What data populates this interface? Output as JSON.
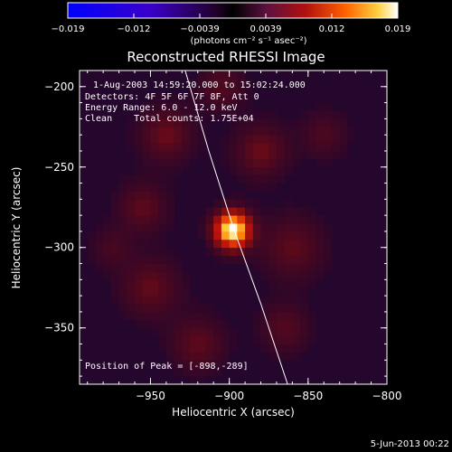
{
  "chart_data": {
    "type": "heatmap",
    "title": "Reconstructed RHESSI Image",
    "colorbar": {
      "ticks": [
        "-0.019",
        "-0.012",
        "-0.0039",
        "0.0039",
        "0.012",
        "0.019"
      ],
      "unit_label": "(photons cm⁻² s⁻¹ asec⁻²)",
      "range": [
        -0.019,
        0.019
      ]
    },
    "xlabel": "Heliocentric X (arcsec)",
    "ylabel": "Heliocentric Y (arcsec)",
    "xlim": [
      -995,
      -800
    ],
    "ylim": [
      -385,
      -190
    ],
    "x_ticks": [
      {
        "v": -950,
        "label": "−950"
      },
      {
        "v": -900,
        "label": "−900"
      },
      {
        "v": -850,
        "label": "−850"
      },
      {
        "v": -800,
        "label": "−800"
      }
    ],
    "y_ticks": [
      {
        "v": -200,
        "label": "−200"
      },
      {
        "v": -250,
        "label": "−250"
      },
      {
        "v": -300,
        "label": "−300"
      },
      {
        "v": -350,
        "label": "−350"
      }
    ],
    "info_lines": [
      "1-Aug-2003 14:59:20.000 to 15:02:24.000",
      "Detectors: 4F 5F 6F 7F 8F, Att 0",
      "Energy Range: 6.0 - 12.0 keV",
      "Clean    Total counts: 1.75E+04"
    ],
    "peak": {
      "label": "Position of Peak = [-898,-289]",
      "x": -898,
      "y": -289,
      "value": 0.019
    },
    "limb_curve": [
      [
        -928,
        -190
      ],
      [
        -913,
        -240
      ],
      [
        -897,
        -289
      ],
      [
        -880,
        -335
      ],
      [
        -863,
        -385
      ]
    ],
    "sources": [
      {
        "x": -898,
        "y": -289,
        "sigma": 8,
        "value": 0.019
      },
      {
        "x": -940,
        "y": -230,
        "sigma": 12,
        "value": 0.0045
      },
      {
        "x": -955,
        "y": -275,
        "sigma": 11,
        "value": 0.004
      },
      {
        "x": -950,
        "y": -325,
        "sigma": 13,
        "value": 0.0042
      },
      {
        "x": -920,
        "y": -360,
        "sigma": 12,
        "value": 0.004
      },
      {
        "x": -880,
        "y": -240,
        "sigma": 12,
        "value": 0.0045
      },
      {
        "x": -860,
        "y": -300,
        "sigma": 14,
        "value": 0.004
      },
      {
        "x": -865,
        "y": -350,
        "sigma": 11,
        "value": 0.0035
      },
      {
        "x": -840,
        "y": -230,
        "sigma": 10,
        "value": 0.003
      },
      {
        "x": -905,
        "y": -200,
        "sigma": 10,
        "value": 0.0035
      },
      {
        "x": -975,
        "y": -300,
        "sigma": 9,
        "value": 0.0025
      }
    ]
  },
  "footer": {
    "date": "5-Jun-2013 00:22"
  }
}
